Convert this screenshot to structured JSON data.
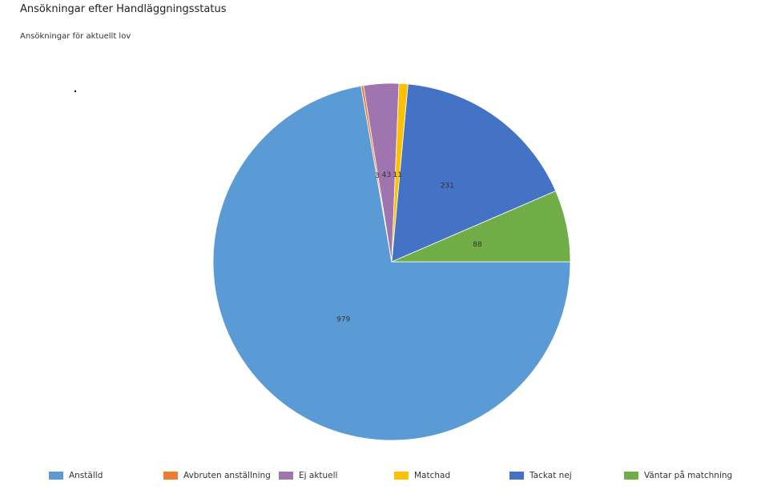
{
  "title": "Ansökningar efter Handläggningsstatus",
  "subtitle": "Ansökningar för aktuellt lov",
  "chart_data": {
    "type": "pie",
    "title": "Ansökningar efter Handläggningsstatus",
    "subtitle": "Ansökningar för aktuellt lov",
    "legend_position": "bottom",
    "start_angle_deg": 0,
    "direction": "clockwise",
    "slices": [
      {
        "label": "Anställd",
        "value": 979,
        "color": "#5B9BD5"
      },
      {
        "label": "Avbruten anställning",
        "value": 3,
        "color": "#ED7D31"
      },
      {
        "label": "Ej aktuell",
        "value": 43,
        "color": "#A074AE"
      },
      {
        "label": "Matchad",
        "value": 11,
        "color": "#FFC000"
      },
      {
        "label": "Tackat nej",
        "value": 231,
        "color": "#4472C4"
      },
      {
        "label": "Väntar på matchning",
        "value": 88,
        "color": "#70AD47"
      }
    ]
  }
}
